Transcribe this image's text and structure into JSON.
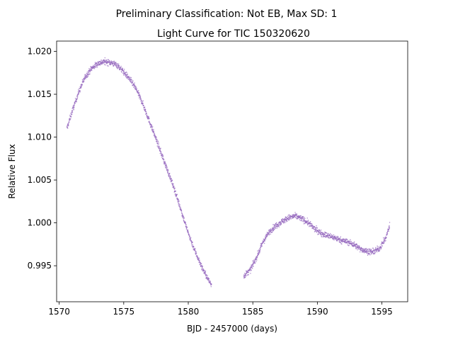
{
  "figure": {
    "suptitle": "Preliminary Classification: Not EB, Max SD: 1"
  },
  "chart_data": {
    "type": "scatter",
    "title": "Light Curve for TIC 150320620",
    "xlabel": "BJD - 2457000 (days)",
    "ylabel": "Relative Flux",
    "xlim": [
      1569.8,
      1597.0
    ],
    "ylim": [
      0.9908,
      1.0212
    ],
    "xticks": [
      1570,
      1575,
      1580,
      1585,
      1590,
      1595
    ],
    "xtick_labels": [
      "1570",
      "1575",
      "1580",
      "1585",
      "1590",
      "1595"
    ],
    "yticks": [
      0.995,
      1.0,
      1.005,
      1.01,
      1.015,
      1.02
    ],
    "ytick_labels": [
      "0.995",
      "1.000",
      "1.005",
      "1.010",
      "1.015",
      "1.020"
    ],
    "grid": false,
    "legend": "none",
    "point_color": "#9467bd",
    "series": [
      {
        "segments": [
          {
            "x": [
              1570.6,
              1571.0,
              1571.5,
              1572.0,
              1572.5,
              1573.0,
              1573.5,
              1574.0,
              1574.5,
              1575.0,
              1575.5,
              1576.0,
              1576.5,
              1577.0,
              1577.5,
              1578.0,
              1578.5,
              1579.0,
              1579.5,
              1580.0,
              1580.5,
              1581.0,
              1581.5,
              1581.8
            ],
            "y": [
              1.011,
              1.013,
              1.0152,
              1.017,
              1.018,
              1.0186,
              1.0188,
              1.0187,
              1.0184,
              1.0176,
              1.0167,
              1.0155,
              1.0138,
              1.0118,
              1.0098,
              1.0077,
              1.0057,
              1.0036,
              1.0012,
              0.9988,
              0.9968,
              0.995,
              0.9935,
              0.9928
            ]
          },
          {
            "x": [
              1584.3,
              1584.8,
              1585.3,
              1585.8,
              1586.3,
              1586.8,
              1587.3,
              1587.8,
              1588.3,
              1588.8,
              1589.3,
              1589.8,
              1590.3,
              1590.8,
              1591.3,
              1591.8,
              1592.3,
              1592.8,
              1593.3,
              1593.8,
              1594.3,
              1594.8,
              1595.3,
              1595.6
            ],
            "y": [
              0.9938,
              0.9945,
              0.996,
              0.9978,
              0.999,
              0.9997,
              1.0002,
              1.0006,
              1.0008,
              1.0005,
              1.0,
              0.9993,
              0.9988,
              0.9985,
              0.9983,
              0.998,
              0.9978,
              0.9975,
              0.997,
              0.9967,
              0.9966,
              0.997,
              0.9982,
              0.9997
            ]
          }
        ]
      }
    ]
  }
}
